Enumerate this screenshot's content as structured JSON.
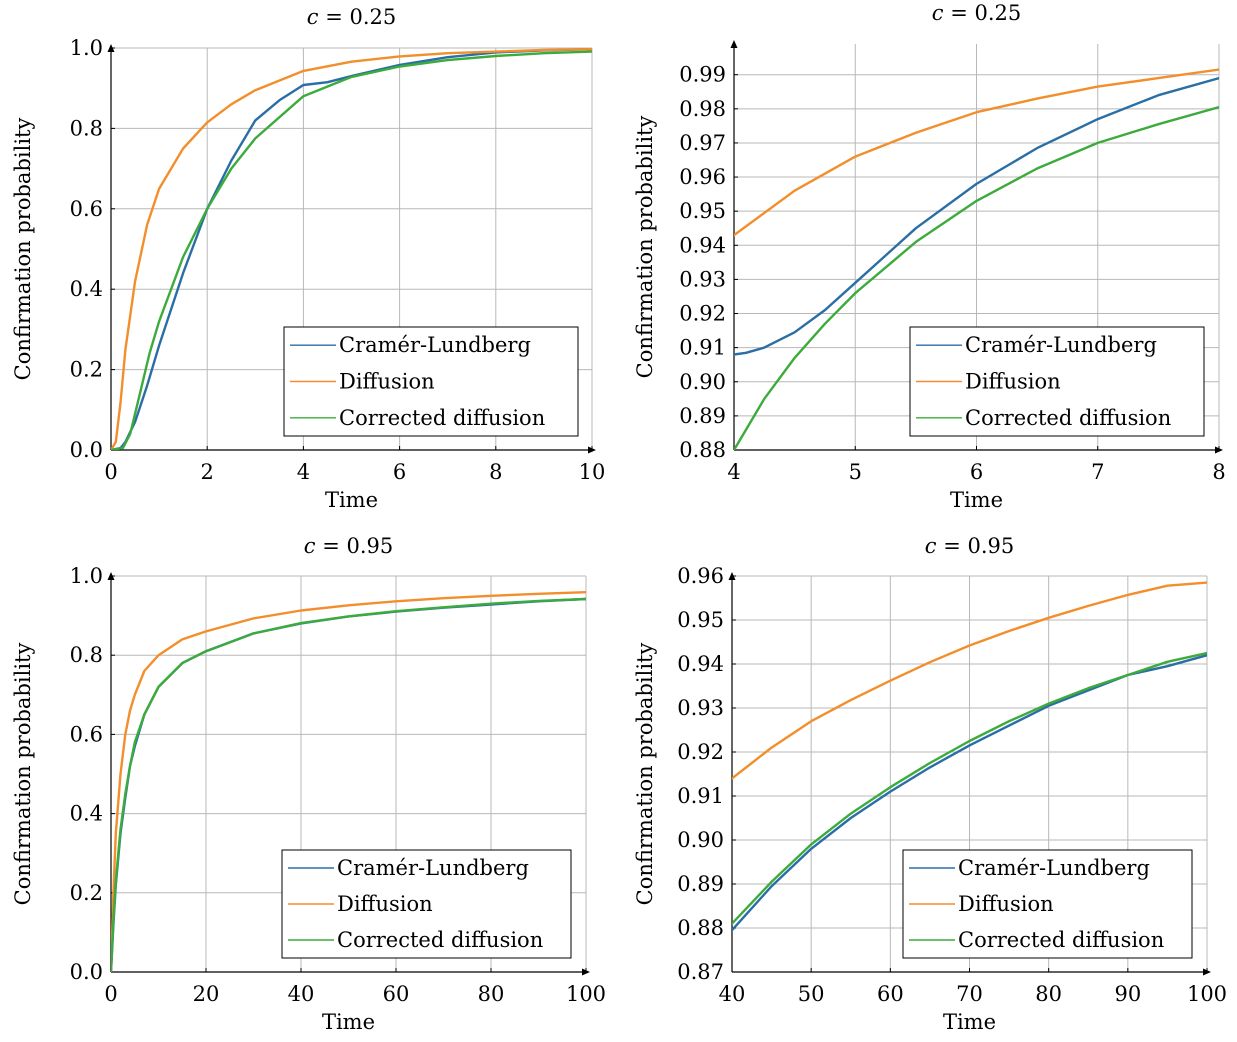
{
  "chart_data": [
    {
      "type": "line",
      "title_var": "c",
      "title_value": "0.25",
      "xlabel": "Time",
      "ylabel": "Confirmation probability",
      "xlim": [
        0,
        10
      ],
      "ylim": [
        0,
        1
      ],
      "xticks": [
        0,
        2,
        4,
        6,
        8,
        10
      ],
      "yticks": [
        0.0,
        0.2,
        0.4,
        0.6,
        0.8,
        1.0
      ],
      "ytick_labels": [
        "0.0",
        "0.2",
        "0.4",
        "0.6",
        "0.8",
        "1.0"
      ],
      "grid": true,
      "legend": "bottom-right",
      "series": [
        {
          "name": "Cramér-Lundberg",
          "color": "#2a6ea6",
          "x": [
            0,
            0.2,
            0.3,
            0.5,
            0.75,
            1,
            1.5,
            2,
            2.5,
            3,
            3.5,
            4,
            4.5,
            5,
            6,
            7,
            8,
            9,
            10
          ],
          "y": [
            0,
            0.005,
            0.02,
            0.07,
            0.16,
            0.26,
            0.44,
            0.6,
            0.72,
            0.82,
            0.87,
            0.908,
            0.915,
            0.93,
            0.958,
            0.977,
            0.989,
            0.994,
            0.997
          ]
        },
        {
          "name": "Diffusion",
          "color": "#f28e2b",
          "x": [
            0,
            0.1,
            0.2,
            0.3,
            0.5,
            0.75,
            1,
            1.5,
            2,
            2.5,
            3,
            4,
            5,
            6,
            7,
            8,
            9,
            10
          ],
          "y": [
            0,
            0.02,
            0.12,
            0.25,
            0.42,
            0.56,
            0.65,
            0.75,
            0.815,
            0.86,
            0.895,
            0.943,
            0.966,
            0.979,
            0.987,
            0.991,
            0.995,
            0.997
          ]
        },
        {
          "name": "Corrected diffusion",
          "color": "#3cab3c",
          "x": [
            0,
            0.25,
            0.4,
            0.6,
            0.8,
            1,
            1.5,
            2,
            2.5,
            3,
            4,
            5,
            6,
            7,
            8,
            9,
            10
          ],
          "y": [
            0,
            0.005,
            0.04,
            0.14,
            0.24,
            0.32,
            0.48,
            0.6,
            0.7,
            0.775,
            0.88,
            0.928,
            0.954,
            0.97,
            0.98,
            0.987,
            0.991
          ]
        }
      ]
    },
    {
      "type": "line",
      "title_var": "c",
      "title_value": "0.25",
      "xlabel": "Time",
      "ylabel": "Confirmation probability",
      "xlim": [
        4,
        8
      ],
      "ylim": [
        0.88,
        0.999
      ],
      "xticks": [
        4,
        5,
        6,
        7,
        8
      ],
      "yticks": [
        0.88,
        0.89,
        0.9,
        0.91,
        0.92,
        0.93,
        0.94,
        0.95,
        0.96,
        0.97,
        0.98,
        0.99
      ],
      "ytick_labels": [
        "0.88",
        "0.89",
        "0.90",
        "0.91",
        "0.92",
        "0.93",
        "0.94",
        "0.95",
        "0.96",
        "0.97",
        "0.98",
        "0.99"
      ],
      "grid": true,
      "legend": "bottom-right",
      "series": [
        {
          "name": "Cramér-Lundberg",
          "color": "#2a6ea6",
          "x": [
            4,
            4.1,
            4.25,
            4.5,
            4.75,
            5,
            5.25,
            5.5,
            6,
            6.5,
            7,
            7.5,
            8
          ],
          "y": [
            0.908,
            0.9085,
            0.91,
            0.9145,
            0.921,
            0.929,
            0.937,
            0.945,
            0.958,
            0.9685,
            0.977,
            0.984,
            0.989
          ]
        },
        {
          "name": "Diffusion",
          "color": "#f28e2b",
          "x": [
            4,
            4.5,
            5,
            5.5,
            6,
            6.5,
            7,
            7.5,
            8
          ],
          "y": [
            0.943,
            0.956,
            0.966,
            0.973,
            0.979,
            0.983,
            0.9865,
            0.989,
            0.9915
          ]
        },
        {
          "name": "Corrected diffusion",
          "color": "#3cab3c",
          "x": [
            4,
            4.25,
            4.5,
            4.75,
            5,
            5.5,
            6,
            6.5,
            7,
            7.5,
            8
          ],
          "y": [
            0.88,
            0.895,
            0.907,
            0.917,
            0.926,
            0.941,
            0.953,
            0.9625,
            0.97,
            0.9755,
            0.9805
          ]
        }
      ]
    },
    {
      "type": "line",
      "title_var": "c",
      "title_value": "0.95",
      "xlabel": "Time",
      "ylabel": "Confirmation probability",
      "xlim": [
        0,
        100
      ],
      "ylim": [
        0,
        1
      ],
      "xticks": [
        0,
        20,
        40,
        60,
        80,
        100
      ],
      "yticks": [
        0.0,
        0.2,
        0.4,
        0.6,
        0.8,
        1.0
      ],
      "ytick_labels": [
        "0.0",
        "0.2",
        "0.4",
        "0.6",
        "0.8",
        "1.0"
      ],
      "grid": true,
      "legend": "bottom-right",
      "series": [
        {
          "name": "Cramér-Lundberg",
          "color": "#2a6ea6",
          "x": [
            0,
            0.5,
            1,
            2,
            3,
            4,
            5,
            7,
            10,
            15,
            20,
            30,
            40,
            50,
            60,
            70,
            80,
            90,
            100
          ],
          "y": [
            0,
            0.12,
            0.22,
            0.35,
            0.44,
            0.52,
            0.57,
            0.65,
            0.72,
            0.78,
            0.81,
            0.855,
            0.88,
            0.898,
            0.91,
            0.92,
            0.928,
            0.936,
            0.942
          ]
        },
        {
          "name": "Diffusion",
          "color": "#f28e2b",
          "x": [
            0,
            0.5,
            1,
            2,
            3,
            4,
            5,
            7,
            10,
            15,
            20,
            30,
            40,
            50,
            60,
            70,
            80,
            90,
            100
          ],
          "y": [
            0,
            0.2,
            0.35,
            0.5,
            0.6,
            0.66,
            0.7,
            0.76,
            0.8,
            0.84,
            0.86,
            0.893,
            0.913,
            0.926,
            0.936,
            0.944,
            0.95,
            0.955,
            0.959
          ]
        },
        {
          "name": "Corrected diffusion",
          "color": "#3cab3c",
          "x": [
            0,
            0.5,
            1,
            2,
            3,
            4,
            5,
            7,
            10,
            15,
            20,
            30,
            40,
            50,
            60,
            70,
            80,
            90,
            100
          ],
          "y": [
            0,
            0.13,
            0.23,
            0.36,
            0.45,
            0.52,
            0.58,
            0.65,
            0.72,
            0.78,
            0.81,
            0.855,
            0.881,
            0.898,
            0.911,
            0.921,
            0.93,
            0.937,
            0.942
          ]
        }
      ]
    },
    {
      "type": "line",
      "title_var": "c",
      "title_value": "0.95",
      "xlabel": "Time",
      "ylabel": "Confirmation probability",
      "xlim": [
        40,
        100
      ],
      "ylim": [
        0.87,
        0.96
      ],
      "xticks": [
        40,
        50,
        60,
        70,
        80,
        90,
        100
      ],
      "yticks": [
        0.87,
        0.88,
        0.89,
        0.9,
        0.91,
        0.92,
        0.93,
        0.94,
        0.95,
        0.96
      ],
      "ytick_labels": [
        "0.87",
        "0.88",
        "0.89",
        "0.90",
        "0.91",
        "0.92",
        "0.93",
        "0.94",
        "0.95",
        "0.96"
      ],
      "grid": true,
      "legend": "bottom-right",
      "series": [
        {
          "name": "Cramér-Lundberg",
          "color": "#2a6ea6",
          "x": [
            40,
            45,
            50,
            55,
            60,
            65,
            70,
            75,
            80,
            85,
            90,
            95,
            100
          ],
          "y": [
            0.8795,
            0.8895,
            0.898,
            0.905,
            0.911,
            0.9165,
            0.9215,
            0.926,
            0.9305,
            0.934,
            0.9375,
            0.9395,
            0.942
          ]
        },
        {
          "name": "Diffusion",
          "color": "#f28e2b",
          "x": [
            40,
            45,
            50,
            55,
            60,
            65,
            70,
            75,
            80,
            85,
            90,
            95,
            100
          ],
          "y": [
            0.914,
            0.921,
            0.927,
            0.9318,
            0.9362,
            0.9404,
            0.9442,
            0.9475,
            0.9505,
            0.9532,
            0.9557,
            0.9578,
            0.9585
          ]
        },
        {
          "name": "Corrected diffusion",
          "color": "#3cab3c",
          "x": [
            40,
            45,
            50,
            55,
            60,
            65,
            70,
            75,
            80,
            85,
            90,
            95,
            100
          ],
          "y": [
            0.881,
            0.8905,
            0.899,
            0.906,
            0.912,
            0.9175,
            0.9225,
            0.927,
            0.931,
            0.9345,
            0.9375,
            0.9405,
            0.9425
          ]
        }
      ]
    }
  ]
}
